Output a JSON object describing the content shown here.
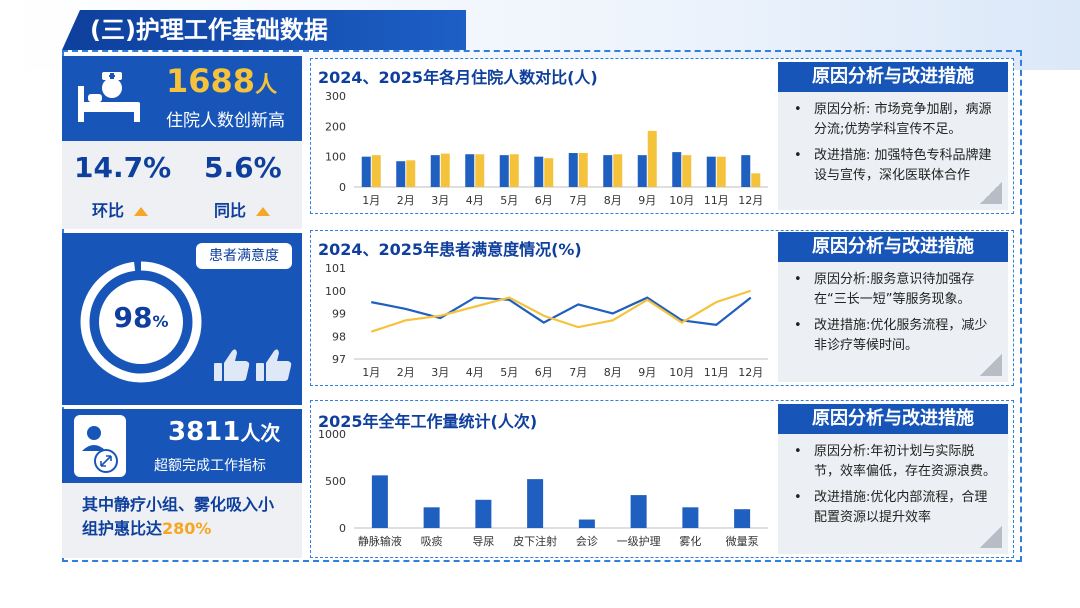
{
  "title": "(三)护理工作基础数据",
  "colors": {
    "primary": "#1756b8",
    "dark": "#0e3f9c",
    "series_2024": "#1f5fbf",
    "series_2025": "#f5c33b",
    "accent": "#f5a623"
  },
  "inpatient": {
    "count_number": "1688",
    "count_unit": "人",
    "caption": "住院人数创新高",
    "mom_value": "14.7%",
    "mom_label": "环比",
    "yoy_value": "5.6%",
    "yoy_label": "同比"
  },
  "satisfaction": {
    "badge": "患者满意度",
    "value": "98",
    "unit": "%"
  },
  "workload": {
    "count_number": "3811",
    "count_unit": "人次",
    "caption": "超额完成工作指标",
    "note_prefix": "其中静疗小组、雾化吸入小组护惠比达",
    "note_value": "280%"
  },
  "reason_heading": "原因分析与改进措施",
  "reasons": [
    {
      "cause": "原因分析: 市场竞争加剧，病源分流;优势学科宣传不足。",
      "action": "改进措施: 加强特色专科品牌建设与宣传，深化医联体合作"
    },
    {
      "cause": "原因分析:服务意识待加强存在“三长一短”等服务现象。",
      "action": "改进措施:优化服务流程，减少非诊疗等候时间。"
    },
    {
      "cause": "原因分析:年初计划与实际脱节，效率偏低，存在资源浪费。",
      "action": "改进措施:优化内部流程，合理配置资源以提升效率"
    }
  ],
  "chart_data": [
    {
      "type": "bar",
      "title": "2024、2025年各月住院人数对比(人)",
      "categories": [
        "1月",
        "2月",
        "3月",
        "4月",
        "5月",
        "6月",
        "7月",
        "8月",
        "9月",
        "10月",
        "11月",
        "12月"
      ],
      "series": [
        {
          "name": "2024",
          "values": [
            100,
            85,
            105,
            108,
            105,
            100,
            112,
            105,
            105,
            115,
            100,
            105
          ]
        },
        {
          "name": "2025",
          "values": [
            105,
            88,
            110,
            108,
            108,
            95,
            112,
            108,
            185,
            105,
            100,
            45
          ]
        }
      ],
      "ylim": [
        0,
        300
      ],
      "yticks": [
        "0",
        "100",
        "200",
        "300"
      ]
    },
    {
      "type": "line",
      "title": "2024、2025年患者满意度情况(%)",
      "categories": [
        "1月",
        "2月",
        "3月",
        "4月",
        "5月",
        "6月",
        "7月",
        "8月",
        "9月",
        "10月",
        "11月",
        "12月"
      ],
      "series": [
        {
          "name": "2024",
          "values": [
            99.5,
            99.2,
            98.8,
            99.7,
            99.6,
            98.6,
            99.4,
            99.0,
            99.7,
            98.7,
            98.5,
            99.7
          ]
        },
        {
          "name": "2025",
          "values": [
            98.2,
            98.7,
            98.9,
            99.3,
            99.7,
            98.9,
            98.4,
            98.7,
            99.6,
            98.6,
            99.5,
            100.0
          ]
        }
      ],
      "ylim": [
        97,
        101
      ],
      "yticks": [
        "97",
        "98",
        "99",
        "100",
        "101"
      ]
    },
    {
      "type": "bar",
      "title": "2025年全年工作量统计(人次)",
      "categories": [
        "静脉输液",
        "吸痰",
        "导尿",
        "皮下注射",
        "会诊",
        "一级护理",
        "雾化",
        "微量泵"
      ],
      "series": [
        {
          "name": "2025",
          "values": [
            560,
            220,
            300,
            520,
            90,
            350,
            220,
            200
          ]
        }
      ],
      "ylim": [
        0,
        1000
      ],
      "yticks": [
        "0",
        "500",
        "1000"
      ]
    }
  ]
}
